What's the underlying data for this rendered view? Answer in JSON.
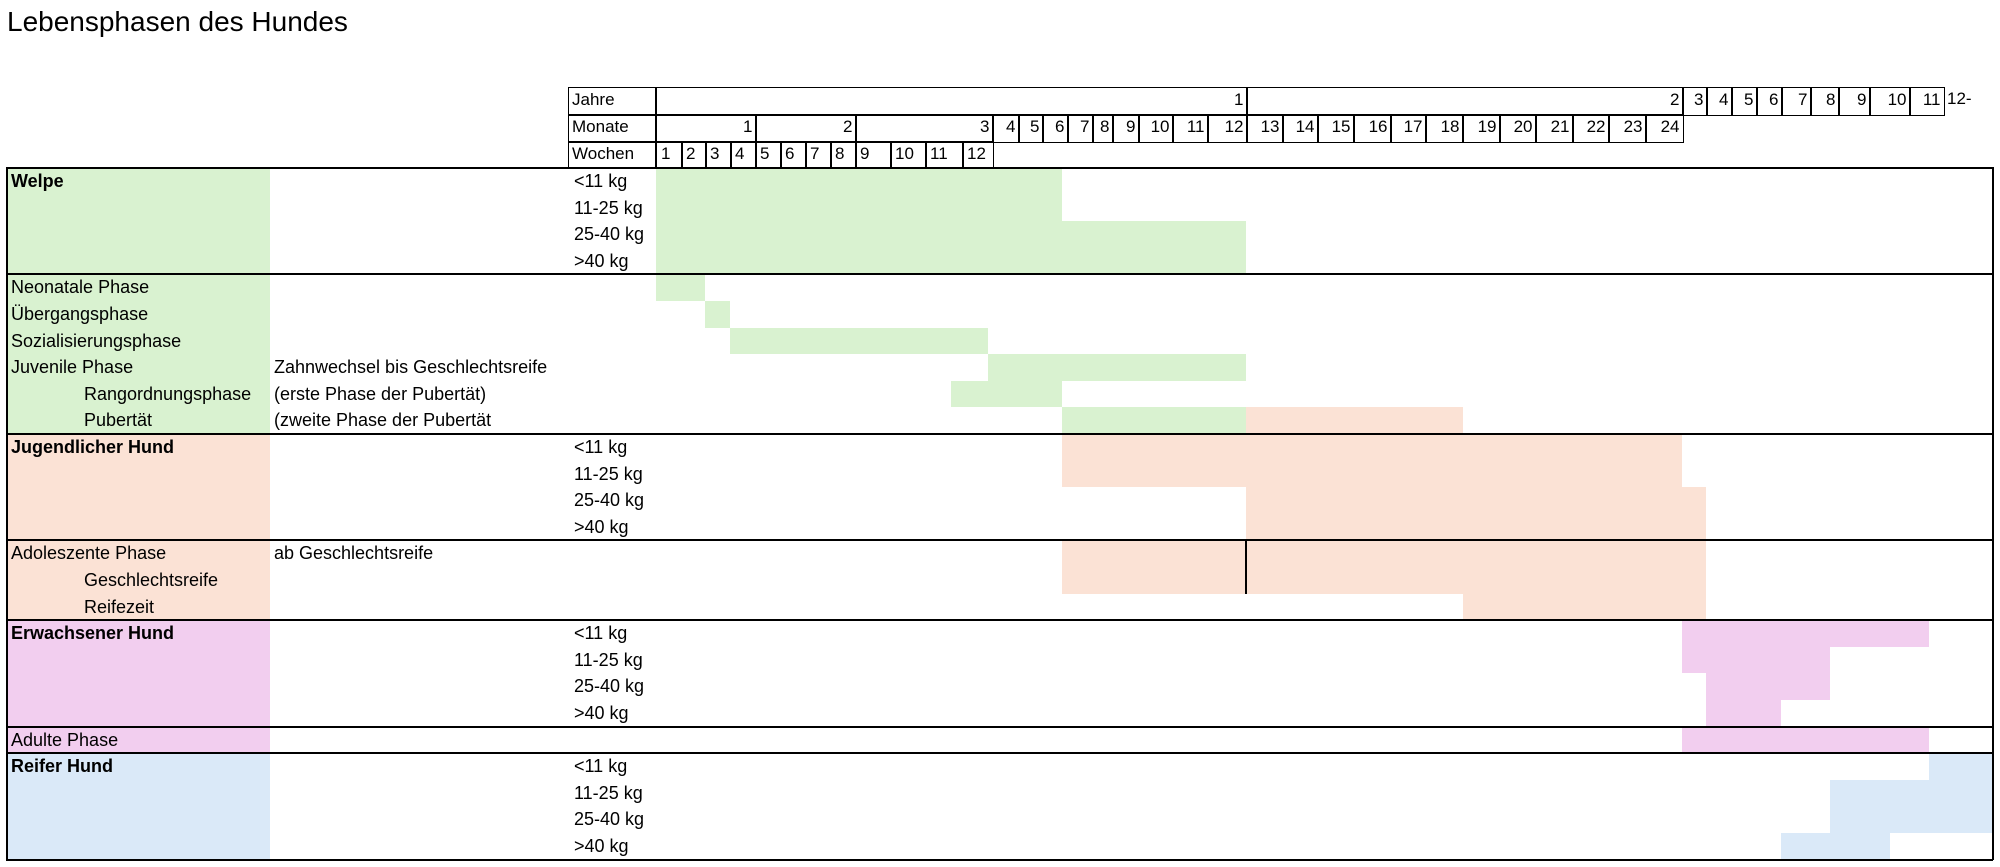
{
  "title": "Lebensphasen des Hundes",
  "colors": {
    "welpe": "#d9f2d0",
    "jugend": "#fbe2d5",
    "erwachsen": "#f2ceef",
    "reif": "#dae9f8"
  },
  "header": {
    "jahre_label": "Jahre",
    "monate_label": "Monate",
    "wochen_label": "Wochen",
    "jahre": [
      "1",
      "2",
      "3",
      "4",
      "5",
      "6",
      "7",
      "8",
      "9",
      "10",
      "11",
      "12-"
    ],
    "monate": [
      "1",
      "2",
      "3",
      "4",
      "5",
      "6",
      "7",
      "8",
      "9",
      "10",
      "11",
      "12",
      "13",
      "14",
      "15",
      "16",
      "17",
      "18",
      "19",
      "20",
      "21",
      "22",
      "23",
      "24"
    ],
    "wochen": [
      "1",
      "2",
      "3",
      "4",
      "5",
      "6",
      "7",
      "8",
      "9",
      "10",
      "11",
      "12"
    ]
  },
  "rows": [
    {
      "label": "Welpe",
      "bold": true,
      "indent": false,
      "note": "",
      "weight": "<11 kg"
    },
    {
      "label": "",
      "bold": false,
      "indent": false,
      "note": "",
      "weight": "11-25 kg"
    },
    {
      "label": "",
      "bold": false,
      "indent": false,
      "note": "",
      "weight": "25-40 kg"
    },
    {
      "label": "",
      "bold": false,
      "indent": false,
      "note": "",
      "weight": ">40 kg"
    },
    {
      "label": "Neonatale Phase",
      "bold": false,
      "indent": false,
      "note": "",
      "weight": ""
    },
    {
      "label": "Übergangsphase",
      "bold": false,
      "indent": false,
      "note": "",
      "weight": ""
    },
    {
      "label": "Sozialisierungsphase",
      "bold": false,
      "indent": false,
      "note": "",
      "weight": ""
    },
    {
      "label": "Juvenile Phase",
      "bold": false,
      "indent": false,
      "note": "Zahnwechsel bis Geschlechtsreife",
      "weight": ""
    },
    {
      "label": "Rangordnungsphase",
      "bold": false,
      "indent": true,
      "note": "(erste Phase der Pubertät)",
      "weight": ""
    },
    {
      "label": "Pubertät",
      "bold": false,
      "indent": true,
      "note": "(zweite Phase der Pubertät",
      "weight": ""
    },
    {
      "label": "Jugendlicher  Hund",
      "bold": true,
      "indent": false,
      "note": "",
      "weight": "<11 kg"
    },
    {
      "label": "",
      "bold": false,
      "indent": false,
      "note": "",
      "weight": "11-25 kg"
    },
    {
      "label": "",
      "bold": false,
      "indent": false,
      "note": "",
      "weight": "25-40 kg"
    },
    {
      "label": "",
      "bold": false,
      "indent": false,
      "note": "",
      "weight": ">40 kg"
    },
    {
      "label": "Adoleszente Phase",
      "bold": false,
      "indent": false,
      "note": "ab Geschlechtsreife",
      "weight": ""
    },
    {
      "label": "Geschlechtsreife",
      "bold": false,
      "indent": true,
      "note": "",
      "weight": ""
    },
    {
      "label": "Reifezeit",
      "bold": false,
      "indent": true,
      "note": "",
      "weight": ""
    },
    {
      "label": "Erwachsener Hund",
      "bold": true,
      "indent": false,
      "note": "",
      "weight": "<11 kg"
    },
    {
      "label": "",
      "bold": false,
      "indent": false,
      "note": "",
      "weight": "11-25 kg"
    },
    {
      "label": "",
      "bold": false,
      "indent": false,
      "note": "",
      "weight": "25-40 kg"
    },
    {
      "label": "",
      "bold": false,
      "indent": false,
      "note": "",
      "weight": ">40 kg"
    },
    {
      "label": "Adulte Phase",
      "bold": false,
      "indent": false,
      "note": "",
      "weight": ""
    },
    {
      "label": "Reifer Hund",
      "bold": true,
      "indent": false,
      "note": "",
      "weight": "<11 kg"
    },
    {
      "label": "",
      "bold": false,
      "indent": false,
      "note": "",
      "weight": "11-25 kg"
    },
    {
      "label": "",
      "bold": false,
      "indent": false,
      "note": "",
      "weight": "25-40 kg"
    },
    {
      "label": "",
      "bold": false,
      "indent": false,
      "note": "",
      "weight": ">40 kg"
    }
  ]
}
